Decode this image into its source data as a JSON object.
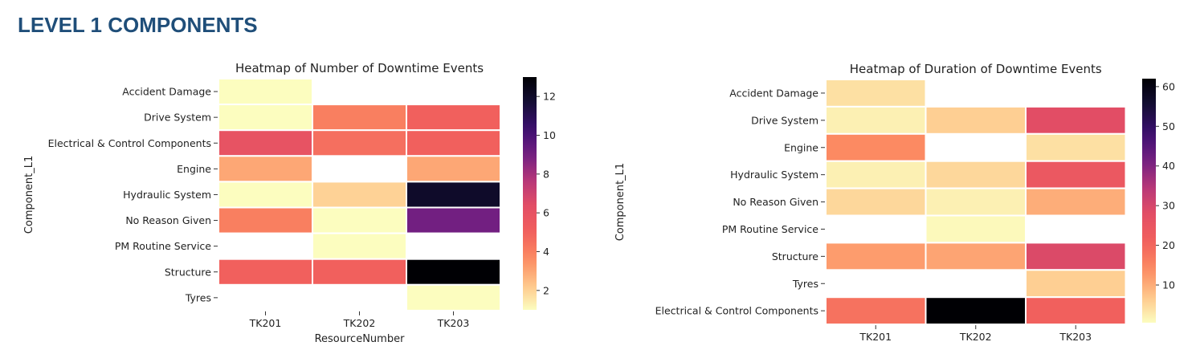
{
  "page": {
    "title": "LEVEL 1 COMPONENTS"
  },
  "colors": {
    "colormap": "magma_r",
    "scale": [
      "#fcfdbf",
      "#fec488",
      "#fc8961",
      "#f1605d",
      "#e34e65",
      "#b73779",
      "#721f81",
      "#3b0f70",
      "#140e36",
      "#000004"
    ]
  },
  "chart_data": [
    {
      "type": "heatmap",
      "title": "Heatmap of Number of Downtime Events",
      "xlabel": "ResourceNumber",
      "ylabel": "Component_L1",
      "x": [
        "TK201",
        "TK202",
        "TK203"
      ],
      "y": [
        "Accident Damage",
        "Drive System",
        "Electrical & Control Components",
        "Engine",
        "Hydraulic System",
        "No Reason Given",
        "PM Routine Service",
        "Structure",
        "Tyres"
      ],
      "values": [
        [
          1,
          null,
          null
        ],
        [
          1,
          4,
          5
        ],
        [
          6,
          4.5,
          5
        ],
        [
          3,
          null,
          3
        ],
        [
          1,
          2,
          12
        ],
        [
          4,
          1,
          9
        ],
        [
          null,
          1,
          null
        ],
        [
          5,
          5,
          13
        ],
        [
          null,
          null,
          1
        ]
      ],
      "colorbar": {
        "min": 1,
        "max": 13,
        "ticks": [
          2,
          4,
          6,
          8,
          10,
          12
        ]
      }
    },
    {
      "type": "heatmap",
      "title": "Heatmap of Duration of Downtime Events",
      "xlabel": "",
      "ylabel": "Component_L1",
      "x": [
        "TK201",
        "TK202",
        "TK203"
      ],
      "y": [
        "Accident Damage",
        "Drive System",
        "Engine",
        "Hydraulic System",
        "No Reason Given",
        "PM Routine Service",
        "Structure",
        "Tyres",
        "Electrical & Control Components"
      ],
      "values": [
        [
          4,
          null,
          null
        ],
        [
          2,
          6,
          28
        ],
        [
          14,
          null,
          4
        ],
        [
          2,
          5,
          24
        ],
        [
          5,
          2,
          10
        ],
        [
          null,
          1,
          null
        ],
        [
          12,
          11,
          29
        ],
        [
          null,
          null,
          6
        ],
        [
          18,
          62,
          21
        ]
      ],
      "colorbar": {
        "min": 0.5,
        "max": 62,
        "ticks": [
          10,
          20,
          30,
          40,
          50,
          60
        ]
      }
    }
  ]
}
